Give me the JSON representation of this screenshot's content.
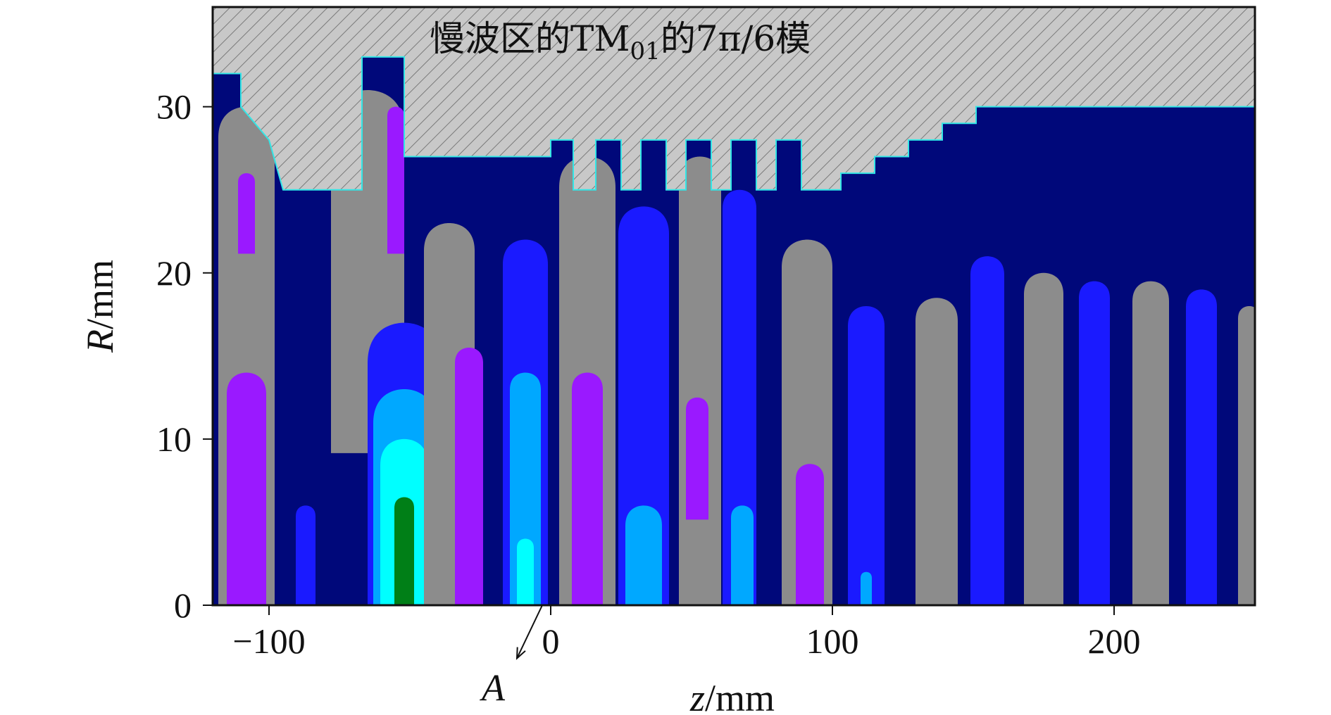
{
  "chart_data": {
    "type": "heatmap",
    "title": {
      "prefix": "慢波区的TM",
      "subscript": "01",
      "suffix": "的7π/6模"
    },
    "xlabel": {
      "var": "z",
      "unit": "/mm"
    },
    "ylabel": {
      "var": "R",
      "unit": "/mm"
    },
    "xlim": [
      -120,
      250
    ],
    "ylim": [
      0,
      36
    ],
    "x_ticks": [
      -100,
      0,
      100,
      200
    ],
    "x_tick_labels": [
      "−100",
      "0",
      "100",
      "200"
    ],
    "y_ticks": [
      0,
      10,
      20,
      30
    ],
    "y_tick_labels": [
      "0",
      "10",
      "20",
      "30"
    ],
    "annotation": {
      "text": "A",
      "arrow_from": [
        -3,
        0
      ],
      "arrow_to": [
        -12,
        -3.2
      ]
    },
    "grid": false,
    "colors": {
      "background": "#00087a",
      "level_blue": "#1a1aff",
      "level_mid_blue": "#0a73ff",
      "level_light_blue": "#00a8ff",
      "level_cyan": "#00ffff",
      "level_green": "#007f17",
      "level_gray": "#8c8c8c",
      "level_purple": "#9a19ff",
      "level_magenta": "#ff19ff",
      "metal_fill": "#c8c8c8",
      "metal_edge": "#33e6e6"
    },
    "wall_profile": [
      [
        -120,
        32
      ],
      [
        -110,
        32
      ],
      [
        -110,
        30
      ],
      [
        -100,
        28
      ],
      [
        -95,
        25
      ],
      [
        -67,
        25
      ],
      [
        -67,
        33
      ],
      [
        -52,
        33
      ],
      [
        -52,
        27
      ],
      [
        0,
        27
      ],
      [
        0,
        28
      ],
      [
        8,
        28
      ],
      [
        8,
        25
      ],
      [
        16,
        25
      ],
      [
        16,
        28
      ],
      [
        25,
        28
      ],
      [
        25,
        25
      ],
      [
        32,
        25
      ],
      [
        32,
        28
      ],
      [
        41,
        28
      ],
      [
        41,
        25
      ],
      [
        48,
        25
      ],
      [
        48,
        28
      ],
      [
        57,
        28
      ],
      [
        57,
        25
      ],
      [
        64,
        25
      ],
      [
        64,
        28
      ],
      [
        73,
        28
      ],
      [
        73,
        25
      ],
      [
        80,
        25
      ],
      [
        80,
        28
      ],
      [
        89,
        28
      ],
      [
        89,
        25
      ],
      [
        103,
        25
      ],
      [
        103,
        26
      ],
      [
        115,
        26
      ],
      [
        115,
        27
      ],
      [
        127,
        27
      ],
      [
        127,
        28
      ],
      [
        139,
        28
      ],
      [
        139,
        29
      ],
      [
        151,
        29
      ],
      [
        151,
        30
      ],
      [
        250,
        30
      ]
    ],
    "contour_cells": [
      {
        "z": -108,
        "r0": 0,
        "r1": 30,
        "w": 20,
        "level": "gray"
      },
      {
        "z": -108,
        "r0": 0,
        "r1": 14,
        "w": 14,
        "level": "purple"
      },
      {
        "z": -108,
        "r0": 22,
        "r1": 26,
        "w": 6,
        "level": "purple"
      },
      {
        "z": -87,
        "r0": 0,
        "r1": 6,
        "w": 7,
        "level": "blue"
      },
      {
        "z": -65,
        "r0": 10,
        "r1": 31,
        "w": 26,
        "level": "gray"
      },
      {
        "z": -55,
        "r0": 22,
        "r1": 30,
        "w": 6,
        "level": "purple"
      },
      {
        "z": -52,
        "r0": 0,
        "r1": 17,
        "w": 26,
        "level": "blue"
      },
      {
        "z": -52,
        "r0": 0,
        "r1": 13,
        "w": 22,
        "level": "light_blue"
      },
      {
        "z": -52,
        "r0": 0,
        "r1": 10,
        "w": 17,
        "level": "cyan"
      },
      {
        "z": -52,
        "r0": 0,
        "r1": 6.5,
        "w": 7,
        "level": "green"
      },
      {
        "z": -36,
        "r0": 0,
        "r1": 23,
        "w": 18,
        "level": "gray"
      },
      {
        "z": -29,
        "r0": 0,
        "r1": 15.5,
        "w": 10,
        "level": "purple"
      },
      {
        "z": -9,
        "r0": 0,
        "r1": 22,
        "w": 16,
        "level": "blue"
      },
      {
        "z": -9,
        "r0": 0,
        "r1": 14,
        "w": 11,
        "level": "light_blue"
      },
      {
        "z": -9,
        "r0": 0,
        "r1": 4,
        "w": 6,
        "level": "cyan"
      },
      {
        "z": 13,
        "r0": 0,
        "r1": 27,
        "w": 20,
        "level": "gray"
      },
      {
        "z": 13,
        "r0": 0,
        "r1": 14,
        "w": 11,
        "level": "purple"
      },
      {
        "z": 33,
        "r0": 0,
        "r1": 24,
        "w": 18,
        "level": "blue"
      },
      {
        "z": 33,
        "r0": 0,
        "r1": 6,
        "w": 13,
        "level": "light_blue"
      },
      {
        "z": 53,
        "r0": 0,
        "r1": 27,
        "w": 15,
        "level": "gray"
      },
      {
        "z": 52,
        "r0": 6,
        "r1": 12.5,
        "w": 8,
        "level": "purple"
      },
      {
        "z": 67,
        "r0": 0,
        "r1": 25,
        "w": 12,
        "level": "blue"
      },
      {
        "z": 68,
        "r0": 0,
        "r1": 6,
        "w": 8,
        "level": "light_blue"
      },
      {
        "z": 91,
        "r0": 0,
        "r1": 22,
        "w": 18,
        "level": "gray"
      },
      {
        "z": 92,
        "r0": 0,
        "r1": 8.5,
        "w": 10,
        "level": "purple"
      },
      {
        "z": 112,
        "r0": 0,
        "r1": 18,
        "w": 13,
        "level": "blue"
      },
      {
        "z": 112,
        "r0": 0,
        "r1": 2,
        "w": 4,
        "level": "light_blue"
      },
      {
        "z": 137,
        "r0": 0,
        "r1": 18.5,
        "w": 15,
        "level": "gray"
      },
      {
        "z": 155,
        "r0": 0,
        "r1": 21,
        "w": 12,
        "level": "blue"
      },
      {
        "z": 175,
        "r0": 0,
        "r1": 20,
        "w": 14,
        "level": "gray"
      },
      {
        "z": 193,
        "r0": 0,
        "r1": 19.5,
        "w": 11,
        "level": "blue"
      },
      {
        "z": 213,
        "r0": 0,
        "r1": 19.5,
        "w": 13,
        "level": "gray"
      },
      {
        "z": 231,
        "r0": 0,
        "r1": 19,
        "w": 11,
        "level": "blue"
      },
      {
        "z": 248,
        "r0": 0,
        "r1": 18,
        "w": 8,
        "level": "gray"
      }
    ]
  }
}
